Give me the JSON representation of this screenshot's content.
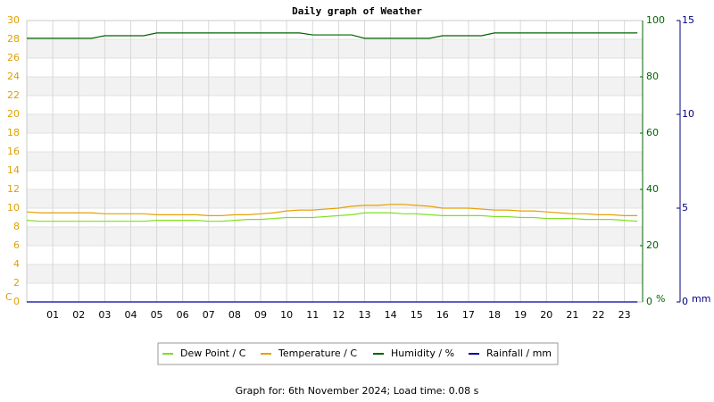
{
  "chart_data": {
    "type": "line",
    "title": "Daily graph of Weather",
    "footer": "Graph for: 6th November 2024; Load time: 0.08 s",
    "ylabel": "C",
    "y2label": "%",
    "y3label": "mm",
    "x": [
      0,
      0.5,
      1,
      1.5,
      2,
      2.5,
      3,
      3.5,
      4,
      4.5,
      5,
      5.5,
      6,
      6.5,
      7,
      7.5,
      8,
      8.5,
      9,
      9.5,
      10,
      10.5,
      11,
      11.5,
      12,
      12.5,
      13,
      13.5,
      14,
      14.5,
      15,
      15.5,
      16,
      16.5,
      17,
      17.5,
      18,
      18.5,
      19,
      19.5,
      20,
      20.5,
      21,
      21.5,
      22,
      22.5,
      23,
      23.5
    ],
    "xlim": [
      0,
      23.7
    ],
    "xticks": [
      {
        "value": 1,
        "label": "01"
      },
      {
        "value": 2,
        "label": "02"
      },
      {
        "value": 3,
        "label": "03"
      },
      {
        "value": 4,
        "label": "04"
      },
      {
        "value": 5,
        "label": "05"
      },
      {
        "value": 6,
        "label": "06"
      },
      {
        "value": 7,
        "label": "07"
      },
      {
        "value": 8,
        "label": "08"
      },
      {
        "value": 9,
        "label": "09"
      },
      10,
      11,
      12,
      13,
      14,
      15,
      16,
      17,
      18,
      19,
      20,
      21,
      22,
      23
    ],
    "ylim": [
      0,
      30
    ],
    "yticks": [
      0,
      2,
      4,
      6,
      8,
      10,
      12,
      14,
      16,
      18,
      20,
      22,
      24,
      26,
      28,
      30
    ],
    "y2lim": [
      0,
      100
    ],
    "y2ticks": [
      0,
      20,
      40,
      60,
      80,
      100
    ],
    "y3lim": [
      0,
      15
    ],
    "y3ticks": [
      0,
      5,
      10,
      15
    ],
    "grid": true,
    "series": [
      {
        "name": "Dew Point / C",
        "color": "#7fe020",
        "values": [
          8.7,
          8.6,
          8.6,
          8.6,
          8.6,
          8.6,
          8.6,
          8.6,
          8.6,
          8.6,
          8.7,
          8.7,
          8.7,
          8.7,
          8.6,
          8.6,
          8.7,
          8.8,
          8.8,
          8.9,
          9.0,
          9.0,
          9.0,
          9.1,
          9.2,
          9.3,
          9.5,
          9.5,
          9.5,
          9.4,
          9.4,
          9.3,
          9.2,
          9.2,
          9.2,
          9.2,
          9.1,
          9.1,
          9.0,
          9.0,
          8.9,
          8.9,
          8.9,
          8.8,
          8.8,
          8.8,
          8.7,
          8.6
        ]
      },
      {
        "name": "Temperature / C",
        "color": "#e8a000",
        "values": [
          9.6,
          9.5,
          9.5,
          9.5,
          9.5,
          9.5,
          9.4,
          9.4,
          9.4,
          9.4,
          9.3,
          9.3,
          9.3,
          9.3,
          9.2,
          9.2,
          9.3,
          9.3,
          9.4,
          9.5,
          9.7,
          9.8,
          9.8,
          9.9,
          10.0,
          10.2,
          10.3,
          10.3,
          10.4,
          10.4,
          10.3,
          10.2,
          10.0,
          10.0,
          10.0,
          9.9,
          9.8,
          9.8,
          9.7,
          9.7,
          9.6,
          9.5,
          9.4,
          9.4,
          9.3,
          9.3,
          9.2,
          9.2
        ]
      },
      {
        "name": "Humidity / %",
        "color": "#006400",
        "axis": "y2",
        "values": [
          93.7,
          93.7,
          93.7,
          93.7,
          93.7,
          93.7,
          94.6,
          94.6,
          94.6,
          94.6,
          95.6,
          95.6,
          95.6,
          95.6,
          95.6,
          95.6,
          95.6,
          95.6,
          95.6,
          95.6,
          95.6,
          95.6,
          94.9,
          94.9,
          94.9,
          94.9,
          93.7,
          93.7,
          93.7,
          93.7,
          93.7,
          93.7,
          94.6,
          94.6,
          94.6,
          94.6,
          95.6,
          95.6,
          95.6,
          95.6,
          95.6,
          95.6,
          95.6,
          95.6,
          95.6,
          95.6,
          95.6,
          95.6
        ]
      },
      {
        "name": "Rainfall / mm",
        "color": "#0000a0",
        "axis": "y3",
        "values": [
          0,
          0,
          0,
          0,
          0,
          0,
          0,
          0,
          0,
          0,
          0,
          0,
          0,
          0,
          0,
          0,
          0,
          0,
          0,
          0,
          0,
          0,
          0,
          0,
          0,
          0,
          0,
          0,
          0,
          0,
          0,
          0,
          0,
          0,
          0,
          0,
          0,
          0,
          0,
          0,
          0,
          0,
          0,
          0,
          0,
          0,
          0,
          0
        ]
      }
    ]
  }
}
